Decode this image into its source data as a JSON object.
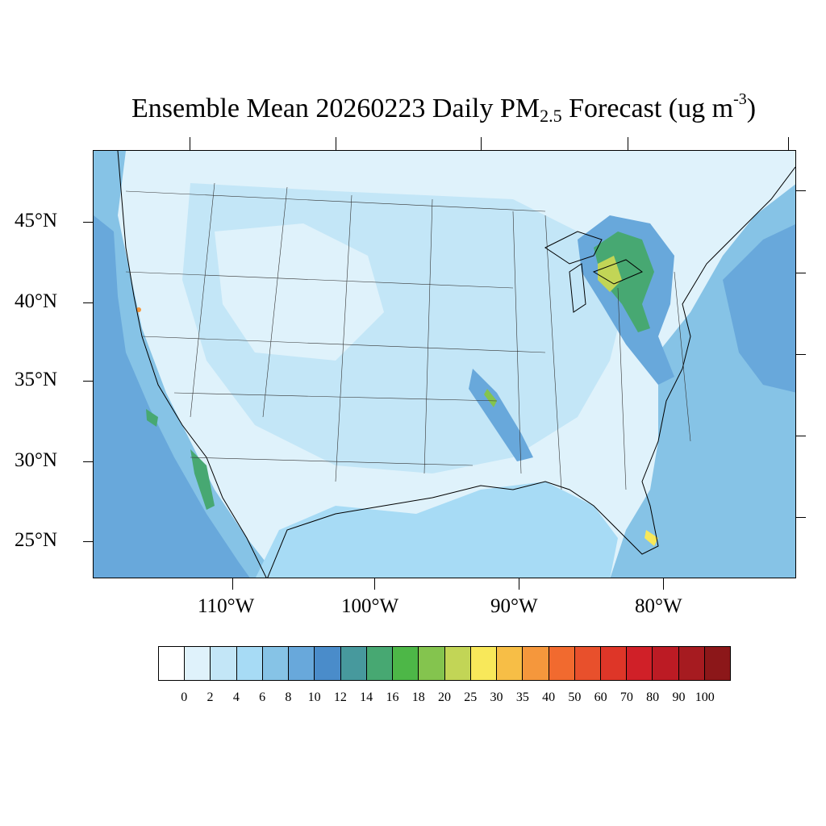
{
  "title": {
    "prefix": "Ensemble Mean 20260223 Daily PM",
    "sub": "2.5",
    "middle": " Forecast (ug m",
    "sup": "-3",
    "suffix": ")"
  },
  "lat_labels": [
    "45°N",
    "40°N",
    "35°N",
    "30°N",
    "25°N"
  ],
  "lon_labels": [
    "110°W",
    "100°W",
    "90°W",
    "80°W"
  ],
  "colorbar": {
    "colors": [
      "#ffffff",
      "#dff2fb",
      "#c3e6f7",
      "#a7dbf5",
      "#86c3e6",
      "#68a8db",
      "#4a8cca",
      "#47999d",
      "#47a872",
      "#4db747",
      "#84c44e",
      "#c2d556",
      "#f8e85a",
      "#f7be46",
      "#f5973c",
      "#f16a2f",
      "#e8502c",
      "#de3628",
      "#d02028",
      "#bc1b24",
      "#a61b20",
      "#8c1719"
    ],
    "labels": [
      "0",
      "2",
      "4",
      "6",
      "8",
      "10",
      "12",
      "14",
      "16",
      "18",
      "20",
      "25",
      "30",
      "35",
      "40",
      "50",
      "60",
      "70",
      "80",
      "90",
      "100"
    ]
  }
}
